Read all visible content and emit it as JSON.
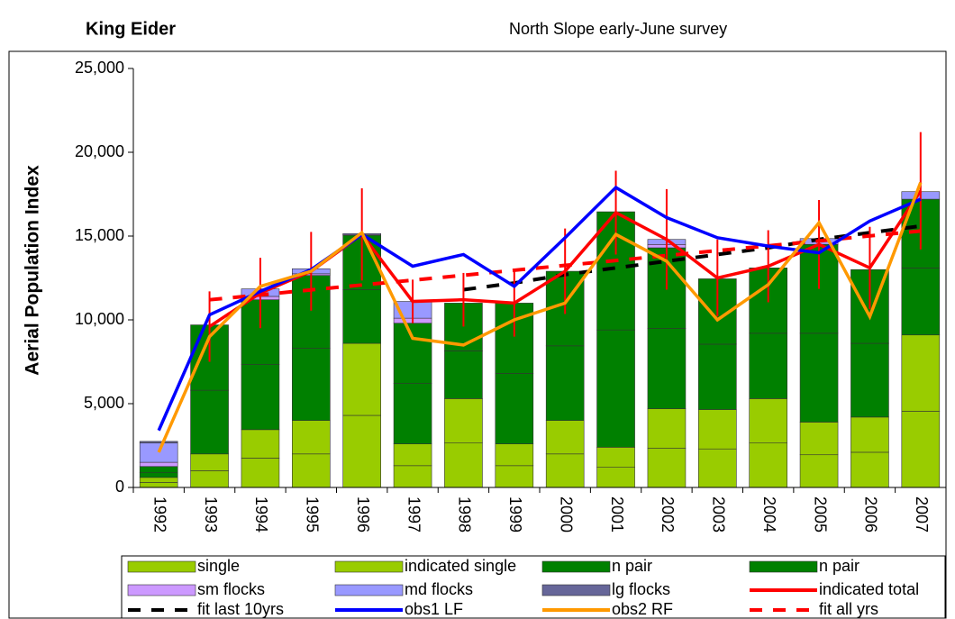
{
  "chart_data": {
    "type": "bar",
    "stacked": true,
    "title": "King Eider",
    "subtitle": "North Slope early-June survey",
    "y_label": "Aerial Population Index",
    "categories": [
      "1992",
      "1993",
      "1994",
      "1995",
      "1996",
      "1997",
      "1998",
      "1999",
      "2000",
      "2001",
      "2002",
      "2003",
      "2004",
      "2005",
      "2006",
      "2007"
    ],
    "ylim": [
      0,
      25000
    ],
    "yticks": [
      0,
      {
        "value": 5000,
        "label": "5,000"
      },
      {
        "value": 10000,
        "label": "10,000"
      },
      {
        "value": 15000,
        "label": "15,000"
      },
      {
        "value": 20000,
        "label": "20,000"
      },
      {
        "value": 25000,
        "label": "25,000"
      }
    ],
    "grid": false,
    "legend": "bottom",
    "series": [
      {
        "name": "single",
        "kind": "bar",
        "color": "#99cc00",
        "values": [
          300,
          1000,
          1750,
          2000,
          4300,
          1300,
          2650,
          1300,
          2000,
          1200,
          2350,
          2300,
          2650,
          1950,
          2100,
          4550
        ]
      },
      {
        "name": "indicated single",
        "kind": "bar",
        "color": "#99cc00",
        "values": [
          300,
          1000,
          1700,
          2000,
          4300,
          1300,
          2650,
          1300,
          2000,
          1200,
          2350,
          2350,
          2650,
          1950,
          2100,
          4550
        ]
      },
      {
        "name": "n pair",
        "kind": "bar",
        "color": "#008000",
        "values": [
          300,
          3800,
          3900,
          4300,
          3200,
          3600,
          2850,
          4200,
          4450,
          7000,
          4800,
          3900,
          3900,
          5300,
          4400,
          4000
        ]
      },
      {
        "name": "n pair",
        "kind": "bar",
        "color": "#008000",
        "values": [
          350,
          3900,
          3850,
          4350,
          3250,
          3600,
          2850,
          4200,
          4450,
          7050,
          4800,
          3900,
          3900,
          5300,
          4400,
          4100
        ]
      },
      {
        "name": "sm flocks",
        "kind": "bar",
        "color": "#cc99ff",
        "values": [
          250,
          0,
          200,
          100,
          50,
          300,
          0,
          0,
          0,
          0,
          200,
          0,
          0,
          0,
          0,
          0
        ]
      },
      {
        "name": "md flocks",
        "kind": "bar",
        "color": "#9999ff",
        "values": [
          1150,
          0,
          450,
          300,
          50,
          1000,
          0,
          0,
          0,
          0,
          300,
          0,
          0,
          350,
          0,
          450
        ]
      },
      {
        "name": "lg flocks",
        "kind": "bar",
        "color": "#666699",
        "values": [
          100,
          0,
          0,
          0,
          0,
          0,
          0,
          0,
          0,
          0,
          0,
          0,
          0,
          0,
          0,
          0
        ]
      },
      {
        "name": "indicated total",
        "kind": "line",
        "color": "#ff0000",
        "dash": false,
        "values": [
          null,
          9600,
          11600,
          12900,
          15100,
          11100,
          11200,
          11000,
          12900,
          16400,
          14800,
          12500,
          13200,
          14500,
          13100,
          17700
        ],
        "error": [
          null,
          2100,
          2100,
          2350,
          2750,
          1300,
          1600,
          2000,
          2550,
          2500,
          3000,
          2300,
          2150,
          2650,
          2450,
          3500
        ]
      },
      {
        "name": "fit last 10yrs",
        "kind": "line",
        "color": "#000000",
        "dash": true,
        "values": [
          null,
          null,
          null,
          null,
          null,
          null,
          11800,
          12200,
          12700,
          13100,
          13500,
          13900,
          14300,
          14800,
          15200,
          15600
        ]
      },
      {
        "name": "obs1 LF",
        "kind": "line",
        "color": "#0000ff",
        "dash": false,
        "values": [
          3400,
          10300,
          11700,
          13000,
          15100,
          13200,
          13900,
          12000,
          14900,
          17900,
          16100,
          14900,
          14400,
          14000,
          15900,
          17200
        ]
      },
      {
        "name": "obs2 RF",
        "kind": "line",
        "color": "#ff9900",
        "dash": false,
        "values": [
          2100,
          9000,
          12000,
          12900,
          15200,
          8900,
          8500,
          10000,
          11000,
          15100,
          13500,
          10000,
          12100,
          15800,
          10200,
          18200
        ]
      },
      {
        "name": "fit all yrs",
        "kind": "line",
        "color": "#ff0000",
        "dash": true,
        "values": [
          null,
          11200,
          11490,
          11790,
          12080,
          12370,
          12660,
          12960,
          13250,
          13540,
          13840,
          14130,
          14420,
          14710,
          15010,
          15300
        ]
      }
    ]
  }
}
